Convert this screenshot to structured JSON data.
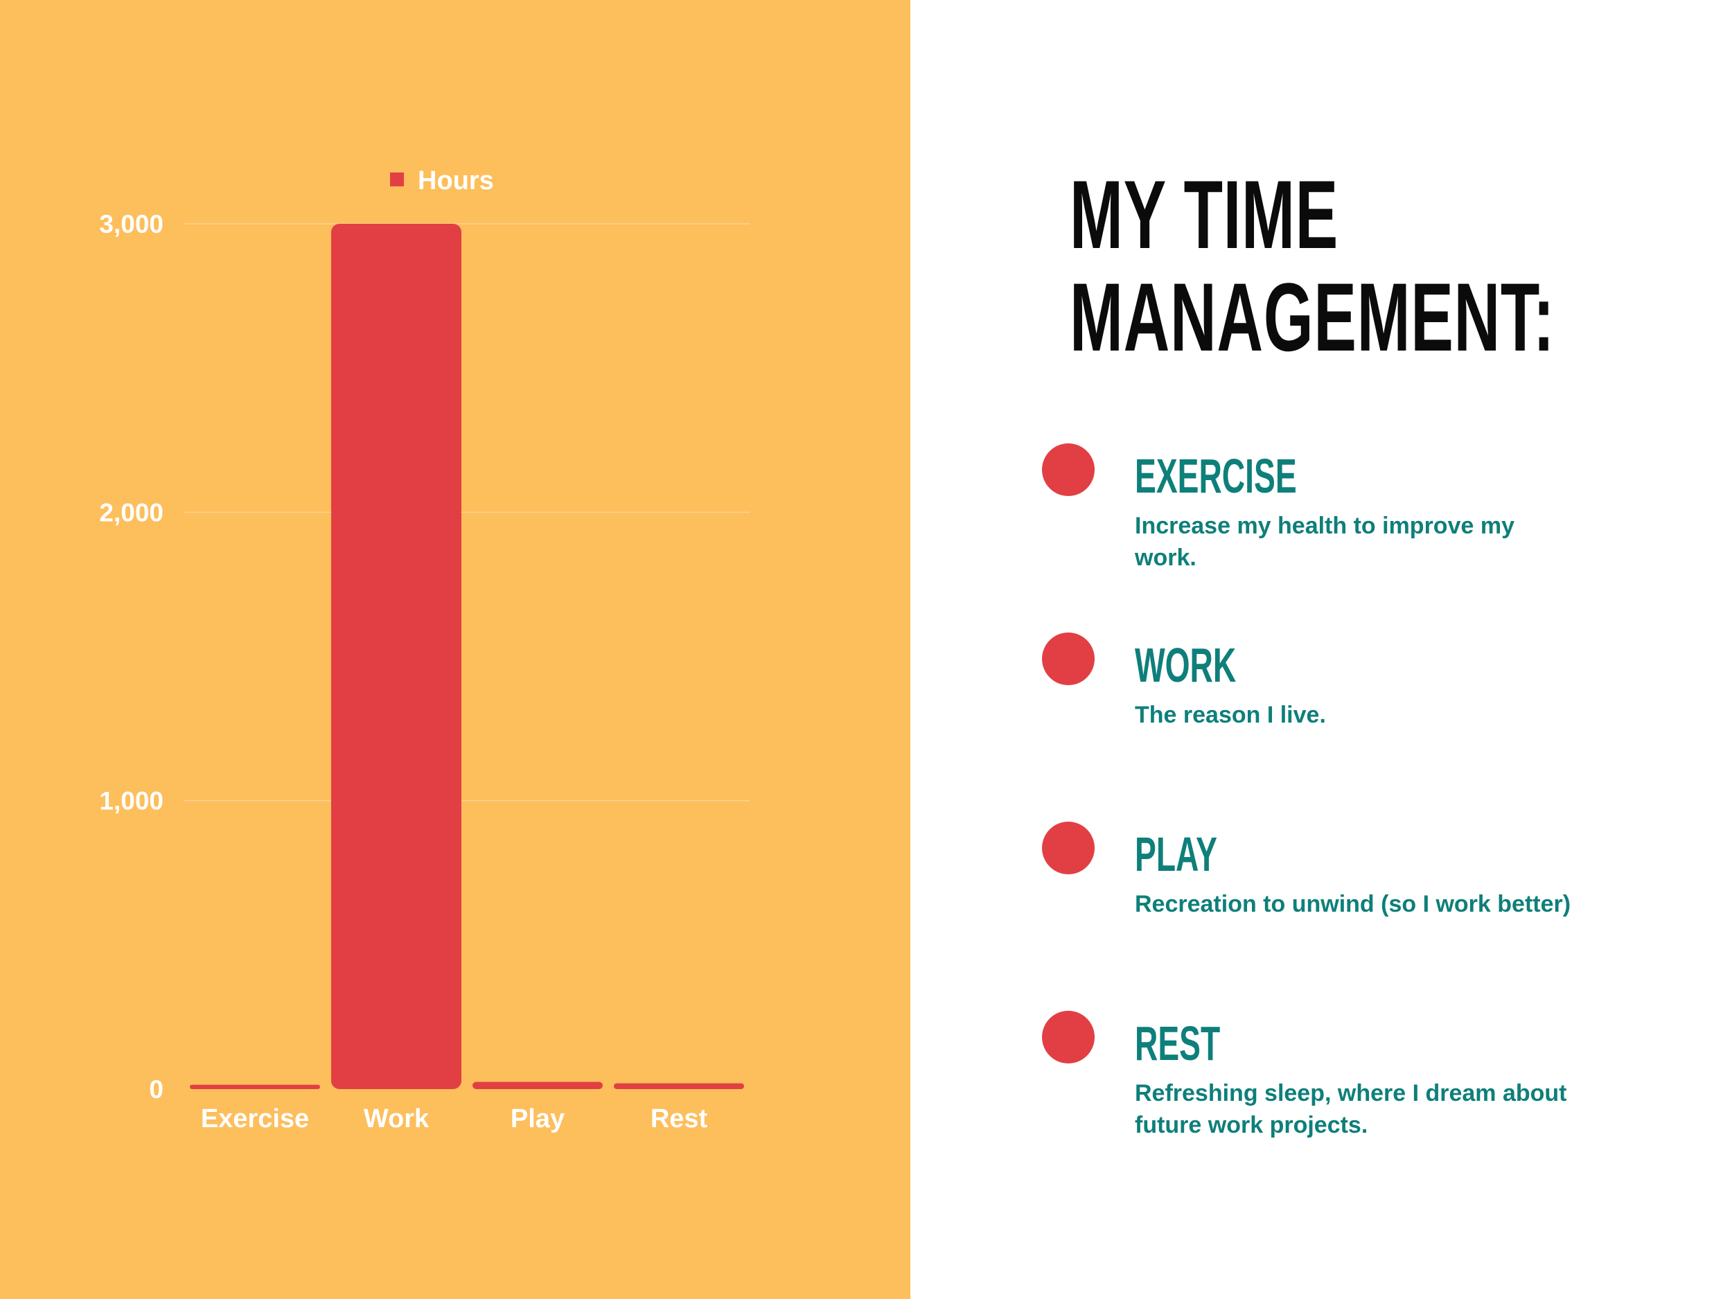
{
  "title": "MY TIME MANAGEMENT:",
  "colors": {
    "panel_bg": "#FDBE5C",
    "bar": "#E23F44",
    "accent_teal": "#0E7F7A",
    "title": "#0b0b0b",
    "chart_text": "#ffffff"
  },
  "items": [
    {
      "title": "EXERCISE",
      "description": "Increase my health to improve my work."
    },
    {
      "title": "WORK",
      "description": "The reason I live."
    },
    {
      "title": "PLAY",
      "description": "Recreation to unwind (so I work better)"
    },
    {
      "title": "REST",
      "description": "Refreshing sleep, where I dream about future work projects."
    }
  ],
  "chart_data": {
    "type": "bar",
    "categories": [
      "Exercise",
      "Work",
      "Play",
      "Rest"
    ],
    "series": [
      {
        "name": "Hours",
        "values": [
          15,
          3000,
          25,
          20
        ]
      }
    ],
    "ylim": [
      0,
      3000
    ],
    "yticks": [
      0,
      1000,
      2000,
      3000
    ],
    "ytick_labels": [
      "0",
      "1,000",
      "2,000",
      "3,000"
    ],
    "xlabel": "",
    "ylabel": "",
    "legend_position": "top-center",
    "grid": true
  }
}
